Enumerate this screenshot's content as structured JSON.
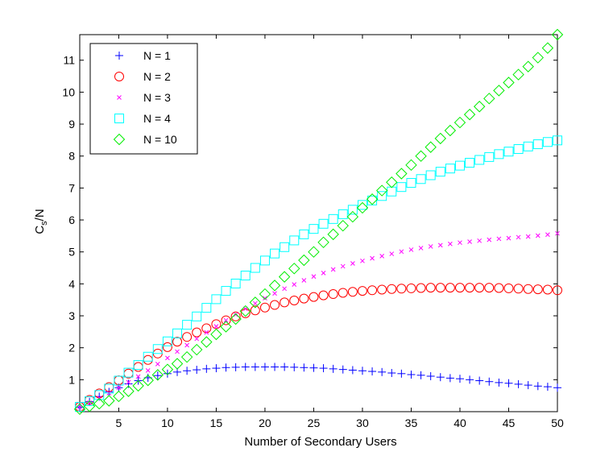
{
  "chart_data": {
    "type": "scatter",
    "xlabel": "Number of Secondary Users",
    "ylabel_main": "C",
    "ylabel_sub": "s",
    "ylabel_rest": "/N",
    "xlim": [
      1,
      50
    ],
    "ylim": [
      0,
      11.8
    ],
    "xticks": [
      5,
      10,
      15,
      20,
      25,
      30,
      35,
      40,
      45,
      50
    ],
    "yticks": [
      1,
      2,
      3,
      4,
      5,
      6,
      7,
      8,
      9,
      10,
      11
    ],
    "legend_position": "top-left",
    "grid": false,
    "series": [
      {
        "name": "N = 1",
        "marker": "plus",
        "color": "#0000ff",
        "x": [
          1,
          2,
          3,
          4,
          5,
          6,
          7,
          8,
          9,
          10,
          11,
          12,
          13,
          14,
          15,
          16,
          17,
          18,
          19,
          20,
          21,
          22,
          23,
          24,
          25,
          26,
          27,
          28,
          29,
          30,
          31,
          32,
          33,
          34,
          35,
          36,
          37,
          38,
          39,
          40,
          41,
          42,
          43,
          44,
          45,
          46,
          47,
          48,
          49,
          50
        ],
        "y": [
          0.14,
          0.31,
          0.47,
          0.62,
          0.75,
          0.87,
          0.97,
          1.06,
          1.13,
          1.19,
          1.24,
          1.28,
          1.31,
          1.34,
          1.36,
          1.38,
          1.39,
          1.4,
          1.4,
          1.4,
          1.4,
          1.4,
          1.39,
          1.38,
          1.37,
          1.36,
          1.34,
          1.32,
          1.3,
          1.28,
          1.26,
          1.24,
          1.21,
          1.19,
          1.16,
          1.14,
          1.11,
          1.08,
          1.05,
          1.03,
          1.0,
          0.97,
          0.94,
          0.91,
          0.89,
          0.86,
          0.83,
          0.8,
          0.78,
          0.75
        ]
      },
      {
        "name": "N = 2",
        "marker": "circle",
        "color": "#ff0000",
        "x": [
          1,
          2,
          3,
          4,
          5,
          6,
          7,
          8,
          9,
          10,
          11,
          12,
          13,
          14,
          15,
          16,
          17,
          18,
          19,
          20,
          21,
          22,
          23,
          24,
          25,
          26,
          27,
          28,
          29,
          30,
          31,
          32,
          33,
          34,
          35,
          36,
          37,
          38,
          39,
          40,
          41,
          42,
          43,
          44,
          45,
          46,
          47,
          48,
          49,
          50
        ],
        "y": [
          0.15,
          0.37,
          0.57,
          0.77,
          0.98,
          1.19,
          1.4,
          1.62,
          1.82,
          2.02,
          2.19,
          2.34,
          2.48,
          2.61,
          2.74,
          2.86,
          2.98,
          3.08,
          3.17,
          3.26,
          3.34,
          3.42,
          3.48,
          3.54,
          3.59,
          3.64,
          3.68,
          3.72,
          3.75,
          3.78,
          3.8,
          3.82,
          3.84,
          3.85,
          3.86,
          3.87,
          3.88,
          3.88,
          3.88,
          3.88,
          3.88,
          3.88,
          3.88,
          3.87,
          3.86,
          3.85,
          3.84,
          3.83,
          3.82,
          3.8
        ]
      },
      {
        "name": "N = 3",
        "marker": "cross",
        "color": "#ff00ff",
        "x": [
          1,
          2,
          3,
          4,
          5,
          6,
          7,
          8,
          9,
          10,
          11,
          12,
          13,
          14,
          15,
          16,
          17,
          18,
          19,
          20,
          21,
          22,
          23,
          24,
          25,
          26,
          27,
          28,
          29,
          30,
          31,
          32,
          33,
          34,
          35,
          36,
          37,
          38,
          39,
          40,
          41,
          42,
          43,
          44,
          45,
          46,
          47,
          48,
          49,
          50
        ],
        "y": [
          0.14,
          0.28,
          0.43,
          0.58,
          0.75,
          0.92,
          1.1,
          1.29,
          1.49,
          1.68,
          1.88,
          2.08,
          2.28,
          2.48,
          2.67,
          2.86,
          3.04,
          3.22,
          3.39,
          3.55,
          3.7,
          3.85,
          3.98,
          4.11,
          4.23,
          4.34,
          4.45,
          4.55,
          4.64,
          4.72,
          4.8,
          4.87,
          4.94,
          5.01,
          5.07,
          5.12,
          5.17,
          5.21,
          5.25,
          5.29,
          5.32,
          5.35,
          5.38,
          5.41,
          5.43,
          5.46,
          5.48,
          5.51,
          5.54,
          5.58
        ]
      },
      {
        "name": "N = 4",
        "marker": "square",
        "color": "#00ffff",
        "x": [
          1,
          2,
          3,
          4,
          5,
          6,
          7,
          8,
          9,
          10,
          11,
          12,
          13,
          14,
          15,
          16,
          17,
          18,
          19,
          20,
          21,
          22,
          23,
          24,
          25,
          26,
          27,
          28,
          29,
          30,
          31,
          32,
          33,
          34,
          35,
          36,
          37,
          38,
          39,
          40,
          41,
          42,
          43,
          44,
          45,
          46,
          47,
          48,
          49,
          50
        ],
        "y": [
          0.15,
          0.33,
          0.52,
          0.72,
          0.97,
          1.22,
          1.46,
          1.72,
          1.96,
          2.2,
          2.45,
          2.72,
          2.98,
          3.25,
          3.52,
          3.78,
          4.01,
          4.26,
          4.5,
          4.73,
          4.95,
          5.15,
          5.36,
          5.55,
          5.72,
          5.88,
          6.03,
          6.18,
          6.32,
          6.47,
          6.61,
          6.75,
          6.89,
          7.03,
          7.16,
          7.28,
          7.4,
          7.51,
          7.61,
          7.7,
          7.79,
          7.88,
          7.97,
          8.06,
          8.14,
          8.22,
          8.3,
          8.37,
          8.44,
          8.49
        ]
      },
      {
        "name": "N = 10",
        "marker": "diamond",
        "color": "#00ee00",
        "x": [
          1,
          2,
          3,
          4,
          5,
          6,
          7,
          8,
          9,
          10,
          11,
          12,
          13,
          14,
          15,
          16,
          17,
          18,
          19,
          20,
          21,
          22,
          23,
          24,
          25,
          26,
          27,
          28,
          29,
          30,
          31,
          32,
          33,
          34,
          35,
          36,
          37,
          38,
          39,
          40,
          41,
          42,
          43,
          44,
          45,
          46,
          47,
          48,
          49,
          50
        ],
        "y": [
          0.08,
          0.17,
          0.25,
          0.34,
          0.48,
          0.64,
          0.81,
          0.98,
          1.15,
          1.32,
          1.5,
          1.71,
          1.94,
          2.18,
          2.42,
          2.66,
          2.9,
          3.15,
          3.42,
          3.68,
          3.95,
          4.22,
          4.48,
          4.74,
          5.0,
          5.3,
          5.55,
          5.82,
          6.1,
          6.38,
          6.65,
          6.92,
          7.18,
          7.45,
          7.72,
          8.0,
          8.28,
          8.55,
          8.8,
          9.05,
          9.3,
          9.55,
          9.8,
          10.05,
          10.3,
          10.55,
          10.8,
          11.08,
          11.38,
          11.8
        ]
      }
    ]
  }
}
